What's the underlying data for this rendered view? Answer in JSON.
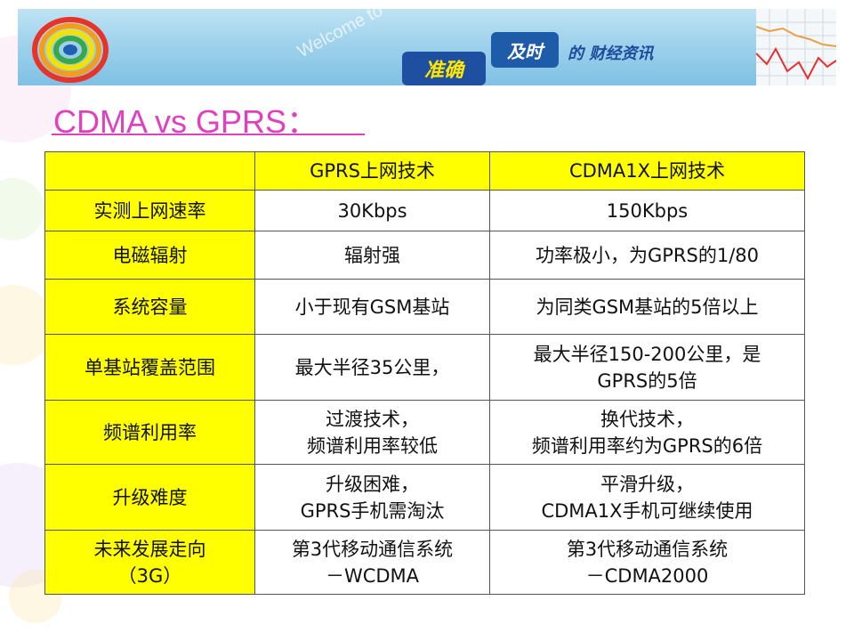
{
  "banner": {
    "welcome_text": "Welcome to",
    "badge_timely": "及时",
    "badge_accurate": "准确",
    "tagline": "的 财经资讯"
  },
  "title": "CDMA vs GPRS：",
  "table": {
    "header": [
      "",
      "GPRS上网技术",
      "CDMA1X上网技术"
    ],
    "rows": [
      {
        "label": [
          "实测上网速率"
        ],
        "gprs": [
          "30Kbps"
        ],
        "cdma": [
          "150Kbps"
        ]
      },
      {
        "label": [
          "电磁辐射"
        ],
        "gprs": [
          "辐射强"
        ],
        "cdma": [
          "功率极小，为GPRS的1/80"
        ]
      },
      {
        "label": [
          "系统容量"
        ],
        "gprs": [
          "小于现有GSM基站"
        ],
        "cdma": [
          "为同类GSM基站的5倍以上"
        ]
      },
      {
        "label": [
          "单基站覆盖范围"
        ],
        "gprs": [
          "最大半径35公里，"
        ],
        "cdma": [
          "最大半径150-200公里，是",
          "GPRS的5倍"
        ]
      },
      {
        "label": [
          "频谱利用率"
        ],
        "gprs": [
          "过渡技术，",
          "频谱利用率较低"
        ],
        "cdma": [
          "换代技术，",
          "频谱利用率约为GPRS的6倍"
        ]
      },
      {
        "label": [
          "升级难度"
        ],
        "gprs": [
          "升级困难，",
          "GPRS手机需淘汰"
        ],
        "cdma": [
          "平滑升级，",
          "CDMA1X手机可继续使用"
        ]
      },
      {
        "label": [
          "未来发展走向",
          "（3G）"
        ],
        "gprs": [
          "第3代移动通信系统",
          "－WCDMA"
        ],
        "cdma": [
          "第3代移动通信系统",
          "－CDMA2000"
        ]
      }
    ]
  }
}
